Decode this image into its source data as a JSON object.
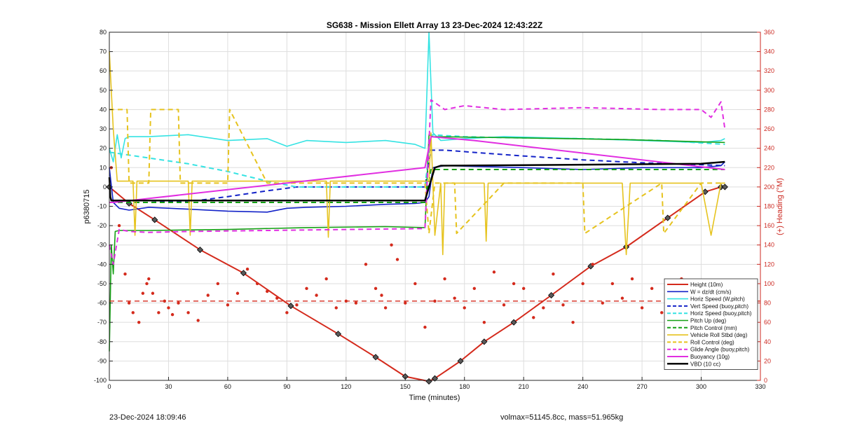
{
  "footer": {
    "left": "23-Dec-2024 18:09:46",
    "right": "volmax=51145.8cc, mass=51.965kg"
  },
  "colors": {
    "red": "#d42a1c",
    "blue": "#1423c8",
    "cyan": "#35e3e3",
    "green": "#14a014",
    "yellow": "#e6c31e",
    "magenta": "#e12ee1",
    "black": "#000000",
    "axis_right": "#cc2a22",
    "grid": "#dedede"
  },
  "chart_data": {
    "type": "line",
    "title": "SG638 - Mission Ellett Array 13 23-Dec-2024 12:43:22Z",
    "xlabel": "Time (minutes)",
    "ylabel_left": "p6380715",
    "ylabel_right": "(+) Heading (°M)",
    "xlim": [
      0,
      330
    ],
    "ylim_left": [
      -100,
      80
    ],
    "ylim_right": [
      0,
      360
    ],
    "x_ticks": [
      0,
      30,
      60,
      90,
      120,
      150,
      180,
      210,
      240,
      270,
      300,
      330
    ],
    "y_ticks_left": [
      -100,
      -90,
      -80,
      -70,
      -60,
      -50,
      -40,
      -30,
      -20,
      -10,
      0,
      10,
      20,
      30,
      40,
      50,
      60,
      70,
      80
    ],
    "y_ticks_right": [
      0,
      20,
      40,
      60,
      80,
      100,
      120,
      140,
      160,
      180,
      200,
      220,
      240,
      260,
      280,
      300,
      320,
      340,
      360
    ],
    "grid": true,
    "legend_position": "lower-right",
    "series": [
      {
        "name": "Height (10m)",
        "color": "#d42a1c",
        "style": "solid",
        "width": 2,
        "marker": "diamond",
        "x": [
          0,
          10,
          23,
          46,
          68,
          92,
          116,
          135,
          150,
          162,
          165,
          178,
          190,
          205,
          224,
          244,
          262,
          283,
          302,
          310,
          312
        ],
        "y": [
          0,
          -8.5,
          -17,
          -32.5,
          -44.5,
          -61.5,
          -76,
          -88,
          -98,
          -100.5,
          -99,
          -90,
          -80,
          -70,
          -56,
          -41,
          -31,
          -16,
          -2.5,
          0,
          0
        ]
      },
      {
        "name": "W = dz/dt (cm/s)",
        "color": "#1423c8",
        "style": "solid",
        "width": 1.6,
        "x": [
          0,
          2,
          5,
          10,
          20,
          40,
          60,
          80,
          90,
          100,
          120,
          140,
          155,
          160,
          162,
          164,
          170,
          190,
          210,
          240,
          270,
          300,
          310,
          312
        ],
        "y": [
          10,
          -8,
          -11,
          -12,
          -10.5,
          -11.5,
          -12.5,
          -13,
          -11,
          -10.5,
          -10,
          -9,
          -8.5,
          -8,
          -5,
          10,
          11,
          10.5,
          10,
          9,
          10,
          10,
          11,
          13
        ]
      },
      {
        "name": "Horiz Speed (W,pitch)",
        "color": "#35e3e3",
        "style": "solid",
        "width": 1.6,
        "x": [
          0,
          2,
          4,
          6,
          8,
          10,
          20,
          40,
          60,
          80,
          90,
          100,
          120,
          140,
          155,
          160,
          162,
          164,
          168,
          180,
          200,
          240,
          270,
          300,
          310,
          312
        ],
        "y": [
          20,
          13,
          27,
          15,
          25,
          26,
          26,
          27,
          24,
          25,
          21,
          24,
          23,
          24,
          22,
          20,
          80,
          28,
          24,
          25,
          26,
          25,
          24,
          23,
          24,
          25
        ]
      },
      {
        "name": "Vert Speed (buoy,pitch)",
        "color": "#1423c8",
        "style": "dashed",
        "width": 2,
        "x": [
          0,
          20,
          45,
          60,
          80,
          95,
          160,
          163,
          170,
          190,
          210,
          240,
          270,
          300,
          312
        ],
        "y": [
          -8,
          -8,
          -7,
          -5,
          -2,
          0,
          0,
          19,
          19,
          17.5,
          16,
          14,
          12.5,
          11.5,
          11
        ]
      },
      {
        "name": "Horiz Speed (buoy,pitch)",
        "color": "#35e3e3",
        "style": "dashed",
        "width": 2,
        "x": [
          0,
          20,
          40,
          60,
          80,
          95,
          160,
          163,
          180,
          200,
          240,
          280,
          312
        ],
        "y": [
          18,
          15,
          12,
          8,
          3,
          0,
          0,
          27,
          26,
          25.5,
          25,
          24,
          22
        ]
      },
      {
        "name": "Pitch Up (deg)",
        "color": "#14a014",
        "style": "solid",
        "width": 1.6,
        "x": [
          0,
          1,
          2,
          3,
          5,
          20,
          60,
          100,
          140,
          160,
          162,
          164,
          200,
          260,
          312
        ],
        "y": [
          -85,
          -30,
          -45,
          -23,
          -22.5,
          -22.5,
          -22,
          -21,
          -20.5,
          -21,
          27,
          26,
          25.5,
          24.5,
          23
        ]
      },
      {
        "name": "Pitch Control (mm)",
        "color": "#14a014",
        "style": "dashed",
        "width": 2,
        "x": [
          0,
          160,
          163,
          312
        ],
        "y": [
          -8,
          -8,
          9,
          9
        ]
      },
      {
        "name": "Vehicle Roll Stbd (deg)",
        "color": "#e6c31e",
        "style": "solid",
        "width": 1.6,
        "x": [
          0,
          2,
          4,
          12,
          13,
          14,
          30,
          40,
          41,
          42,
          70,
          110,
          111,
          112,
          150,
          162,
          163,
          165,
          168,
          169,
          170,
          190,
          191,
          192,
          220,
          260,
          262,
          264,
          300,
          305,
          310,
          312
        ],
        "y": [
          70,
          30,
          3,
          3,
          -25,
          3,
          3,
          3,
          -25,
          3,
          3,
          3,
          -26,
          3,
          3,
          3,
          28,
          -25,
          2,
          -35,
          2,
          2,
          -28,
          2,
          2,
          2,
          -35,
          2,
          2,
          -25,
          2,
          2
        ]
      },
      {
        "name": "Roll Control (deg)",
        "color": "#e6c31e",
        "style": "dashed",
        "width": 2,
        "x": [
          0,
          5,
          9,
          10,
          20,
          21,
          35,
          36,
          60,
          61,
          80,
          160,
          162,
          165,
          175,
          176,
          200,
          240,
          241,
          280,
          281,
          300,
          312
        ],
        "y": [
          40,
          40,
          40,
          2,
          2,
          40,
          40,
          2,
          2,
          40,
          2,
          2,
          -24,
          2,
          2,
          -24,
          2,
          2,
          -24,
          2,
          -24,
          2,
          2
        ]
      },
      {
        "name": "Glide Angle (buoy,pitch)",
        "color": "#e12ee1",
        "style": "dashed",
        "width": 2,
        "x": [
          0,
          2,
          5,
          10,
          20,
          40,
          80,
          120,
          160,
          163,
          170,
          180,
          200,
          240,
          280,
          300,
          305,
          310,
          312
        ],
        "y": [
          -30,
          -40,
          -22,
          -23,
          -23.5,
          -23,
          -22.5,
          -22,
          -21.5,
          45,
          40,
          42,
          40,
          41,
          40,
          40,
          36,
          44,
          30
        ]
      },
      {
        "name": "Buoyancy (10g)",
        "color": "#e12ee1",
        "style": "solid",
        "width": 2,
        "x": [
          0,
          2,
          160,
          163,
          185,
          312
        ],
        "y": [
          -8,
          -8,
          10,
          26,
          24,
          9
        ]
      },
      {
        "name": "VBD (10 cc)",
        "color": "#000000",
        "style": "solid",
        "width": 2.5,
        "x": [
          0,
          0.5,
          1,
          160,
          162,
          165,
          168,
          240,
          300,
          312
        ],
        "y": [
          5,
          -5,
          -7,
          -7,
          0,
          10,
          11,
          11.5,
          12,
          13
        ]
      }
    ],
    "heading_series": {
      "name": "Heading",
      "axis": "right",
      "color": "#d42a1c",
      "style": "markers",
      "mean_line": 82,
      "x": [
        1,
        5,
        8,
        10,
        12,
        15,
        17,
        19,
        20,
        22,
        25,
        28,
        30,
        32,
        35,
        40,
        45,
        50,
        55,
        60,
        65,
        70,
        75,
        80,
        85,
        90,
        95,
        100,
        105,
        110,
        115,
        120,
        125,
        130,
        135,
        138,
        140,
        143,
        146,
        150,
        155,
        160,
        165,
        170,
        175,
        180,
        185,
        190,
        195,
        200,
        205,
        210,
        215,
        220,
        225,
        230,
        235,
        240,
        245,
        250,
        255,
        260,
        265,
        270,
        275,
        280,
        285,
        290,
        295,
        300,
        305,
        310,
        312
      ],
      "y": [
        220,
        160,
        110,
        80,
        70,
        60,
        90,
        100,
        105,
        90,
        70,
        82,
        75,
        68,
        80,
        70,
        62,
        88,
        100,
        78,
        90,
        115,
        100,
        92,
        85,
        70,
        78,
        95,
        88,
        105,
        75,
        82,
        80,
        120,
        95,
        88,
        75,
        140,
        125,
        80,
        100,
        55,
        82,
        105,
        85,
        75,
        95,
        60,
        112,
        78,
        100,
        95,
        65,
        75,
        110,
        78,
        60,
        100,
        120,
        80,
        100,
        85,
        105,
        75,
        95,
        70,
        100,
        105,
        80,
        95,
        100,
        95,
        100
      ]
    }
  }
}
